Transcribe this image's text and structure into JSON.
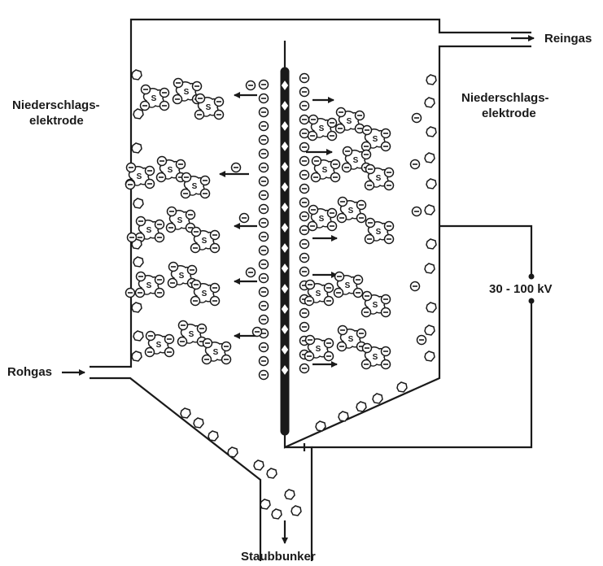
{
  "labels": {
    "reingas": "Reingas",
    "rohgas": "Rohgas",
    "staubbunker": "Staubbunker",
    "voltage": "30 - 100 kV",
    "left_electrode_line1": "Niederschlags-",
    "left_electrode_line2": "elektrode",
    "right_electrode_line1": "Niederschlags-",
    "right_electrode_line2": "elektrode"
  },
  "symbols": {
    "ion": "⊖",
    "particle": "S"
  },
  "colors": {
    "line": "#1a1a1a",
    "background": "#ffffff"
  }
}
